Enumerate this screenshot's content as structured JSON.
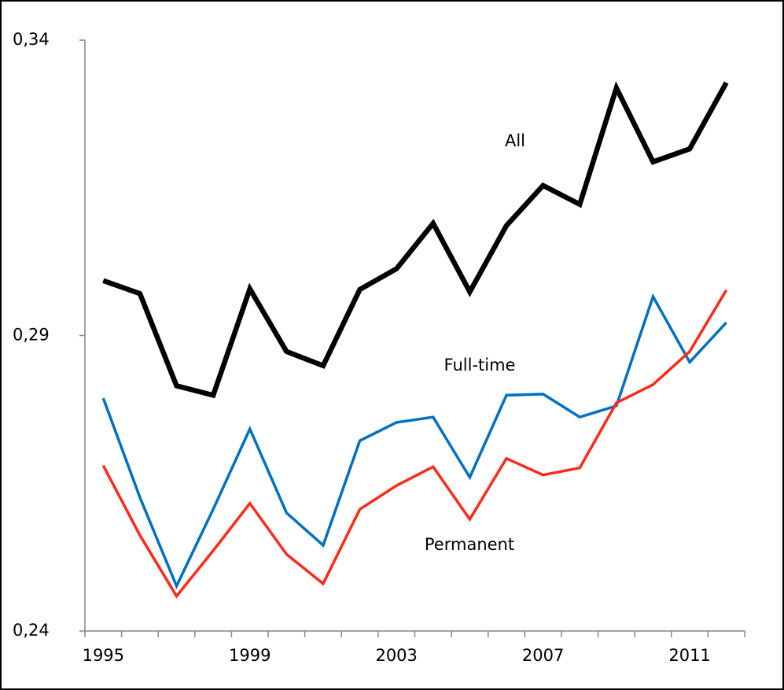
{
  "chart_data": {
    "type": "line",
    "categories": [
      "1995",
      null,
      null,
      null,
      "1999",
      null,
      null,
      null,
      "2003",
      null,
      null,
      null,
      "2007",
      null,
      null,
      null,
      "2011",
      null
    ],
    "series": [
      {
        "name": "All",
        "color": "#000000",
        "values": [
          0.2993,
          0.2971,
          0.2815,
          0.2799,
          0.2979,
          0.2873,
          0.2849,
          0.2978,
          0.3013,
          0.309,
          0.2974,
          0.3086,
          0.3154,
          0.3122,
          0.3319,
          0.3194,
          0.3216,
          0.3328
        ]
      },
      {
        "name": "Full-time",
        "color": "#0070c0",
        "values": [
          0.2794,
          0.2626,
          0.2476,
          0.2606,
          0.2742,
          0.26,
          0.2545,
          0.2722,
          0.2753,
          0.2762,
          0.266,
          0.2799,
          0.2801,
          0.2762,
          0.2781,
          0.2966,
          0.2855,
          0.2922
        ]
      },
      {
        "name": "Permanent",
        "color": "#ff2a1a",
        "values": [
          0.268,
          0.2562,
          0.2459,
          0.2536,
          0.2616,
          0.253,
          0.248,
          0.2606,
          0.2646,
          0.2678,
          0.2589,
          0.2692,
          0.2664,
          0.2676,
          0.2786,
          0.2817,
          0.2873,
          0.2977
        ]
      }
    ],
    "ylim": [
      0.24,
      0.34
    ],
    "yticks": [
      {
        "value": 0.24,
        "label": "0,24"
      },
      {
        "value": 0.29,
        "label": "0,29"
      },
      {
        "value": 0.34,
        "label": "0,34"
      }
    ],
    "grid": false
  }
}
